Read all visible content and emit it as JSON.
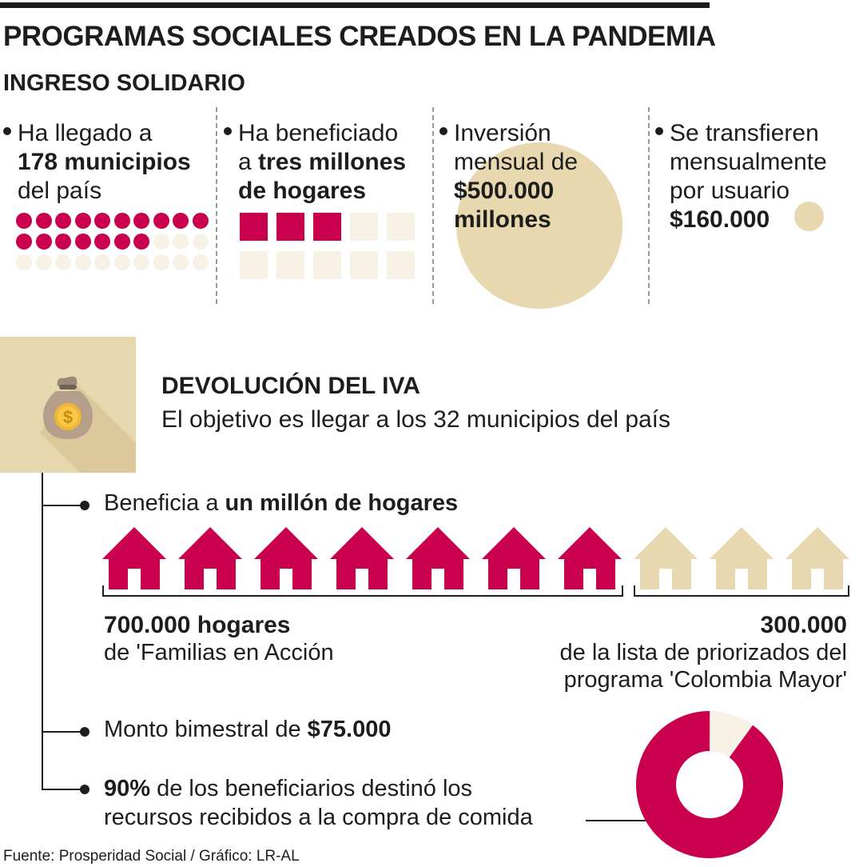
{
  "header": {
    "title": "PROGRAMAS SOCIALES CREADOS EN LA PANDEMIA",
    "subtitle": "INGRESO SOLIDARIO"
  },
  "ingreso_solidario": {
    "col1": {
      "line1": "Ha llegado a",
      "bold": "178 municipios",
      "line3": "del país",
      "dots_filled": 17,
      "dots_total": 30
    },
    "col2": {
      "line1": "Ha beneficiado",
      "line2_pre": "a ",
      "line2_bold": "tres millones",
      "line3_bold": "de hogares",
      "squares_filled": 3,
      "squares_total": 10
    },
    "col3": {
      "line1": "Inversión",
      "line2": "mensual de",
      "bold1": "$500.000",
      "bold2": "millones"
    },
    "col4": {
      "line1": "Se transfieren",
      "line2": "mensualmente",
      "line3": "por usuario",
      "bold": "$160.000"
    }
  },
  "devolucion_iva": {
    "title": "DEVOLUCIÓN DEL IVA",
    "subtitle": "El objetivo es llegar a los 32 municipios del país",
    "icon": "money-bag-icon",
    "item1": {
      "pre": "Beneficia a ",
      "bold": "un millón de hogares"
    },
    "houses_filled": 7,
    "houses_total": 10,
    "left_stat": {
      "bold": "700.000 hogares",
      "sub": "de 'Familias en Acción"
    },
    "right_stat": {
      "bold": "300.000",
      "sub1": "de la lista de priorizados del",
      "sub2": "programa 'Colombia Mayor'"
    },
    "item2": {
      "pre": "Monto bimestral de ",
      "bold": "$75.000"
    },
    "item3": {
      "bold": "90%",
      "line1_rest": " de los beneficiarios destinó los",
      "line2": "recursos recibidos a la compra de comida"
    },
    "donut_percent": 90
  },
  "colors": {
    "magenta": "#c8004e",
    "beige": "#e8d8b0",
    "light": "#f7f1e6",
    "dark": "#1d1d1b"
  },
  "footer": {
    "source": "Fuente: Prosperidad Social / Gráfico: LR-AL"
  }
}
